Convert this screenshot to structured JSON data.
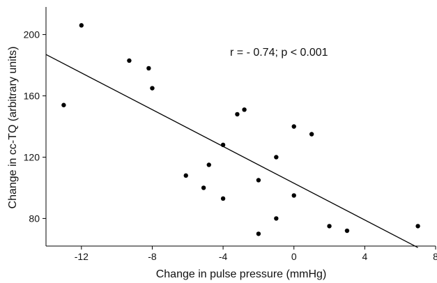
{
  "chart_data": {
    "type": "scatter",
    "title": "",
    "xlabel": "Change in pulse pressure (mmHg)",
    "ylabel": "Change in cc-TQ (arbitrary units)",
    "annotation": "r = - 0.74; p < 0.001",
    "xlim": [
      -14,
      8
    ],
    "ylim": [
      62,
      218
    ],
    "x_ticks": [
      -12,
      -8,
      -4,
      0,
      4,
      8
    ],
    "y_ticks": [
      80,
      120,
      160,
      200
    ],
    "x_tick_labels": [
      "-12",
      "-8",
      "-4",
      "0",
      "4",
      "8"
    ],
    "y_tick_labels": [
      "80",
      "120",
      "160",
      "200"
    ],
    "grid": false,
    "series": [
      {
        "points": [
          {
            "x": -13,
            "y": 154
          },
          {
            "x": -12,
            "y": 206
          },
          {
            "x": -9.3,
            "y": 183
          },
          {
            "x": -8.2,
            "y": 178
          },
          {
            "x": -8,
            "y": 165
          },
          {
            "x": -6.1,
            "y": 108
          },
          {
            "x": -5.1,
            "y": 100
          },
          {
            "x": -4.8,
            "y": 115
          },
          {
            "x": -4,
            "y": 128
          },
          {
            "x": -4,
            "y": 93
          },
          {
            "x": -3.2,
            "y": 148
          },
          {
            "x": -2.8,
            "y": 151
          },
          {
            "x": -2,
            "y": 105
          },
          {
            "x": -2,
            "y": 70
          },
          {
            "x": -1,
            "y": 120
          },
          {
            "x": -1,
            "y": 80
          },
          {
            "x": 0,
            "y": 140
          },
          {
            "x": 0,
            "y": 95
          },
          {
            "x": 1,
            "y": 135
          },
          {
            "x": 2,
            "y": 75
          },
          {
            "x": 3,
            "y": 72
          },
          {
            "x": 7,
            "y": 75
          }
        ]
      }
    ],
    "regression_line": {
      "x": [
        -14,
        7
      ],
      "y": [
        187,
        61
      ]
    },
    "colors": {
      "points": "#000000",
      "line": "#000000",
      "axes": "#000000"
    }
  }
}
